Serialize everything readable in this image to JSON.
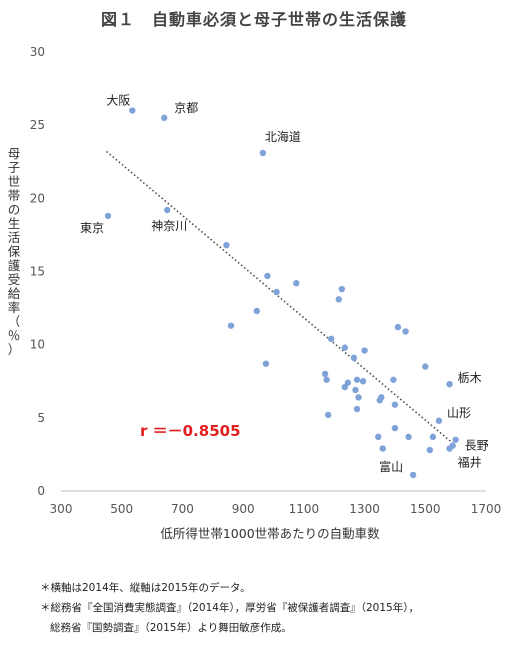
{
  "title": "図１　自動車必須と母子世帯の生活保護",
  "chart_data": {
    "type": "scatter",
    "title": "図１　自動車必須と母子世帯の生活保護",
    "xlabel": "低所得世帯1000世帯あたりの自動車数",
    "ylabel": "母子世帯の生活保護受給率（％）",
    "xlim": [
      300,
      1700
    ],
    "ylim": [
      0,
      30
    ],
    "xticks": [
      "300",
      "500",
      "700",
      "900",
      "1100",
      "1300",
      "1500",
      "1700"
    ],
    "yticks": [
      "0",
      "5",
      "10",
      "15",
      "20",
      "25",
      "30"
    ],
    "grid": false,
    "trendline": {
      "style": "dotted",
      "x": [
        450,
        1600
      ],
      "y": [
        23.2,
        3.1
      ]
    },
    "annotation": "r ＝－0.8505",
    "points": [
      {
        "x": 535,
        "y": 26.0,
        "label": "大阪"
      },
      {
        "x": 640,
        "y": 25.5,
        "label": "京都"
      },
      {
        "x": 965,
        "y": 23.1,
        "label": "北海道"
      },
      {
        "x": 455,
        "y": 18.8,
        "label": "東京"
      },
      {
        "x": 650,
        "y": 19.2,
        "label": "神奈川"
      },
      {
        "x": 1580,
        "y": 7.3,
        "label": "栃木"
      },
      {
        "x": 1545,
        "y": 4.8,
        "label": "山形"
      },
      {
        "x": 1590,
        "y": 3.1,
        "label": "長野"
      },
      {
        "x": 1580,
        "y": 2.9,
        "label": "福井"
      },
      {
        "x": 1460,
        "y": 1.1,
        "label": "富山"
      },
      {
        "x": 845,
        "y": 16.8,
        "label": ""
      },
      {
        "x": 860,
        "y": 11.3,
        "label": ""
      },
      {
        "x": 945,
        "y": 12.3,
        "label": ""
      },
      {
        "x": 980,
        "y": 14.7,
        "label": ""
      },
      {
        "x": 1010,
        "y": 13.6,
        "label": ""
      },
      {
        "x": 1075,
        "y": 14.2,
        "label": ""
      },
      {
        "x": 975,
        "y": 8.7,
        "label": ""
      },
      {
        "x": 1215,
        "y": 13.1,
        "label": ""
      },
      {
        "x": 1225,
        "y": 13.8,
        "label": ""
      },
      {
        "x": 1190,
        "y": 10.4,
        "label": ""
      },
      {
        "x": 1235,
        "y": 9.8,
        "label": ""
      },
      {
        "x": 1300,
        "y": 9.6,
        "label": ""
      },
      {
        "x": 1170,
        "y": 8.0,
        "label": ""
      },
      {
        "x": 1175,
        "y": 7.6,
        "label": ""
      },
      {
        "x": 1180,
        "y": 5.2,
        "label": ""
      },
      {
        "x": 1235,
        "y": 7.1,
        "label": ""
      },
      {
        "x": 1245,
        "y": 7.4,
        "label": ""
      },
      {
        "x": 1265,
        "y": 9.1,
        "label": ""
      },
      {
        "x": 1275,
        "y": 7.6,
        "label": ""
      },
      {
        "x": 1270,
        "y": 6.9,
        "label": ""
      },
      {
        "x": 1280,
        "y": 6.4,
        "label": ""
      },
      {
        "x": 1275,
        "y": 5.6,
        "label": ""
      },
      {
        "x": 1295,
        "y": 7.5,
        "label": ""
      },
      {
        "x": 1350,
        "y": 6.2,
        "label": ""
      },
      {
        "x": 1355,
        "y": 6.4,
        "label": ""
      },
      {
        "x": 1345,
        "y": 3.7,
        "label": ""
      },
      {
        "x": 1360,
        "y": 2.9,
        "label": ""
      },
      {
        "x": 1395,
        "y": 7.6,
        "label": ""
      },
      {
        "x": 1410,
        "y": 11.2,
        "label": ""
      },
      {
        "x": 1435,
        "y": 10.9,
        "label": ""
      },
      {
        "x": 1400,
        "y": 5.9,
        "label": ""
      },
      {
        "x": 1400,
        "y": 4.3,
        "label": ""
      },
      {
        "x": 1445,
        "y": 3.7,
        "label": ""
      },
      {
        "x": 1500,
        "y": 8.5,
        "label": ""
      },
      {
        "x": 1515,
        "y": 2.8,
        "label": ""
      },
      {
        "x": 1525,
        "y": 3.7,
        "label": ""
      },
      {
        "x": 1600,
        "y": 3.5,
        "label": ""
      }
    ]
  },
  "notes": [
    "＊横軸は2014年、縦軸は2015年のデータ。",
    "＊総務省『全国消費実態調査』（2014年），厚労省『被保護者調査』（2015年），",
    "総務省『国勢調査』（2015年）より舞田敏彦作成。"
  ]
}
